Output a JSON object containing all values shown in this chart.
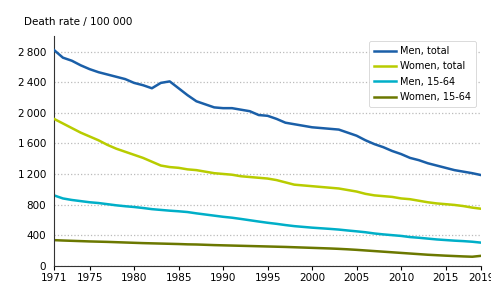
{
  "years": [
    1971,
    1972,
    1973,
    1974,
    1975,
    1976,
    1977,
    1978,
    1979,
    1980,
    1981,
    1982,
    1983,
    1984,
    1985,
    1986,
    1987,
    1988,
    1989,
    1990,
    1991,
    1992,
    1993,
    1994,
    1995,
    1996,
    1997,
    1998,
    1999,
    2000,
    2001,
    2002,
    2003,
    2004,
    2005,
    2006,
    2007,
    2008,
    2009,
    2010,
    2011,
    2012,
    2013,
    2014,
    2015,
    2016,
    2017,
    2018,
    2019
  ],
  "men_total": [
    2820,
    2720,
    2680,
    2620,
    2570,
    2530,
    2500,
    2470,
    2440,
    2390,
    2360,
    2320,
    2390,
    2410,
    2320,
    2230,
    2150,
    2110,
    2070,
    2060,
    2060,
    2040,
    2020,
    1970,
    1960,
    1920,
    1870,
    1850,
    1830,
    1810,
    1800,
    1790,
    1780,
    1740,
    1700,
    1640,
    1590,
    1550,
    1500,
    1460,
    1410,
    1380,
    1340,
    1310,
    1280,
    1250,
    1230,
    1210,
    1185
  ],
  "women_total": [
    1920,
    1860,
    1800,
    1740,
    1690,
    1640,
    1580,
    1530,
    1490,
    1450,
    1410,
    1360,
    1310,
    1290,
    1280,
    1260,
    1250,
    1230,
    1210,
    1200,
    1190,
    1170,
    1160,
    1150,
    1140,
    1120,
    1090,
    1060,
    1050,
    1040,
    1030,
    1020,
    1010,
    990,
    970,
    940,
    920,
    910,
    900,
    880,
    870,
    850,
    830,
    815,
    805,
    795,
    780,
    760,
    745
  ],
  "men_1564": [
    920,
    880,
    860,
    845,
    830,
    820,
    805,
    790,
    778,
    768,
    755,
    740,
    730,
    720,
    712,
    702,
    685,
    670,
    655,
    640,
    628,
    612,
    595,
    578,
    562,
    548,
    532,
    518,
    508,
    498,
    490,
    482,
    473,
    461,
    450,
    438,
    422,
    410,
    400,
    390,
    375,
    366,
    355,
    344,
    336,
    328,
    322,
    314,
    302
  ],
  "women_1564": [
    335,
    330,
    326,
    322,
    318,
    315,
    312,
    308,
    304,
    300,
    296,
    293,
    290,
    287,
    284,
    280,
    278,
    274,
    270,
    267,
    264,
    261,
    258,
    255,
    252,
    249,
    246,
    242,
    238,
    234,
    230,
    226,
    221,
    215,
    208,
    200,
    192,
    184,
    176,
    168,
    160,
    152,
    144,
    138,
    132,
    127,
    122,
    118,
    130
  ],
  "colors": {
    "men_total": "#1a5fa8",
    "women_total": "#b8cc00",
    "men_1564": "#00afc8",
    "women_1564": "#6b7800"
  },
  "ylabel": "Death rate / 100 000",
  "ylim": [
    0,
    3000
  ],
  "yticks": [
    0,
    400,
    800,
    1200,
    1600,
    2000,
    2400,
    2800
  ],
  "xticks": [
    1971,
    1975,
    1980,
    1985,
    1990,
    1995,
    2000,
    2005,
    2010,
    2015,
    2019
  ],
  "legend_labels": [
    "Men, total",
    "Women, total",
    "Men, 15-64",
    "Women, 15-64"
  ],
  "background_color": "#ffffff",
  "grid_color": "#bbbbbb"
}
